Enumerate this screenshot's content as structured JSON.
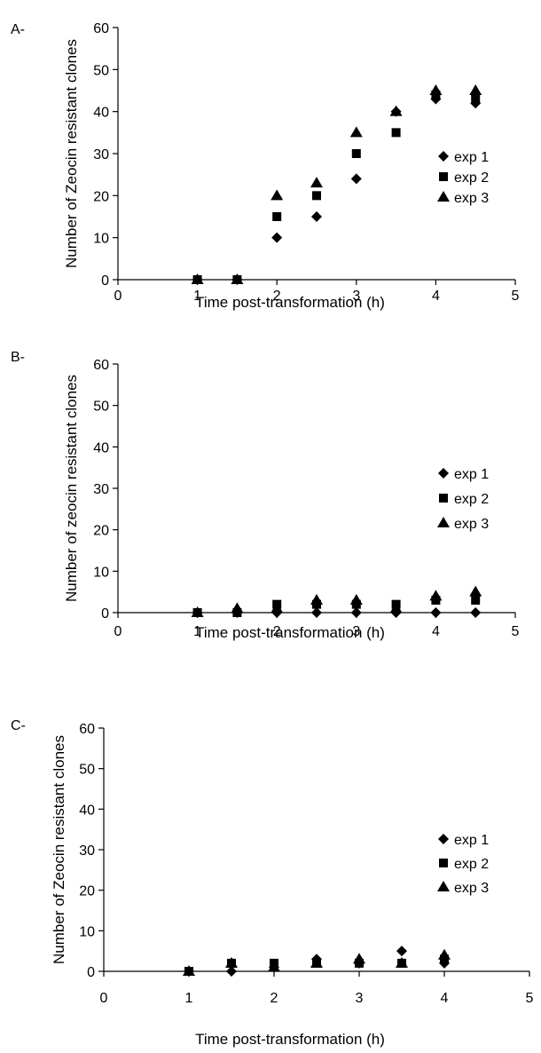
{
  "chart_data": [
    {
      "type": "scatter",
      "panel_label": "A-",
      "xlabel": "Time post-transformation (h)",
      "ylabel": "Number of Zeocin resistant clones",
      "xlim": [
        0,
        5
      ],
      "ylim": [
        0,
        60
      ],
      "xticks": [
        0,
        1,
        2,
        3,
        4,
        5
      ],
      "yticks": [
        0,
        10,
        20,
        30,
        40,
        50,
        60
      ],
      "grid": false,
      "legend_position": "right",
      "series": [
        {
          "name": "exp 1",
          "marker": "diamond",
          "x": [
            1,
            1.5,
            2,
            2.5,
            3,
            3.5,
            4,
            4.5
          ],
          "y": [
            0,
            0,
            10,
            15,
            24,
            40,
            43,
            42
          ]
        },
        {
          "name": "exp 2",
          "marker": "square",
          "x": [
            1,
            1.5,
            2,
            2.5,
            3,
            3.5,
            4,
            4.5
          ],
          "y": [
            0,
            0,
            15,
            20,
            30,
            35,
            44,
            43
          ]
        },
        {
          "name": "exp 3",
          "marker": "triangle",
          "x": [
            1,
            1.5,
            2,
            2.5,
            3,
            3.5,
            4,
            4.5
          ],
          "y": [
            0,
            0,
            20,
            23,
            35,
            40,
            45,
            45
          ]
        }
      ]
    },
    {
      "type": "scatter",
      "panel_label": "B-",
      "xlabel": "Time post-transformation (h)",
      "ylabel": "Number of zeocin resistant clones",
      "xlim": [
        0,
        5
      ],
      "ylim": [
        0,
        60
      ],
      "xticks": [
        0,
        1,
        2,
        3,
        4,
        5
      ],
      "yticks": [
        0,
        10,
        20,
        30,
        40,
        50,
        60
      ],
      "grid": false,
      "legend_position": "right",
      "series": [
        {
          "name": "exp 1",
          "marker": "diamond",
          "x": [
            1,
            1.5,
            2,
            2.5,
            3,
            3.5,
            4,
            4.5
          ],
          "y": [
            0,
            0,
            0,
            0,
            0,
            0,
            0,
            0
          ]
        },
        {
          "name": "exp 2",
          "marker": "square",
          "x": [
            1,
            1.5,
            2,
            2.5,
            3,
            3.5,
            4,
            4.5
          ],
          "y": [
            0,
            0,
            2,
            2,
            2,
            2,
            3,
            3
          ]
        },
        {
          "name": "exp 3",
          "marker": "triangle",
          "x": [
            1,
            1.5,
            2,
            2.5,
            3,
            3.5,
            4,
            4.5
          ],
          "y": [
            0,
            1,
            1,
            3,
            3,
            1,
            4,
            5
          ]
        }
      ]
    },
    {
      "type": "scatter",
      "panel_label": "C-",
      "xlabel": "Time post-transformation (h)",
      "ylabel": "Number of Zeocin resistant clones",
      "xlim": [
        0,
        5
      ],
      "ylim": [
        0,
        60
      ],
      "xticks": [
        0,
        1,
        2,
        3,
        4,
        5
      ],
      "yticks": [
        0,
        10,
        20,
        30,
        40,
        50,
        60
      ],
      "grid": false,
      "legend_position": "right",
      "series": [
        {
          "name": "exp 1",
          "marker": "diamond",
          "x": [
            1,
            1.5,
            2,
            2.5,
            3,
            3.5,
            4
          ],
          "y": [
            0,
            0,
            1,
            3,
            2,
            5,
            2
          ]
        },
        {
          "name": "exp 2",
          "marker": "square",
          "x": [
            1,
            1.5,
            2,
            2.5,
            3,
            3.5,
            4
          ],
          "y": [
            0,
            2,
            2,
            2,
            2,
            2,
            3
          ]
        },
        {
          "name": "exp 3",
          "marker": "triangle",
          "x": [
            1,
            1.5,
            2,
            2.5,
            3,
            3.5,
            4
          ],
          "y": [
            0,
            2,
            1,
            2,
            3,
            2,
            4
          ]
        }
      ]
    }
  ]
}
